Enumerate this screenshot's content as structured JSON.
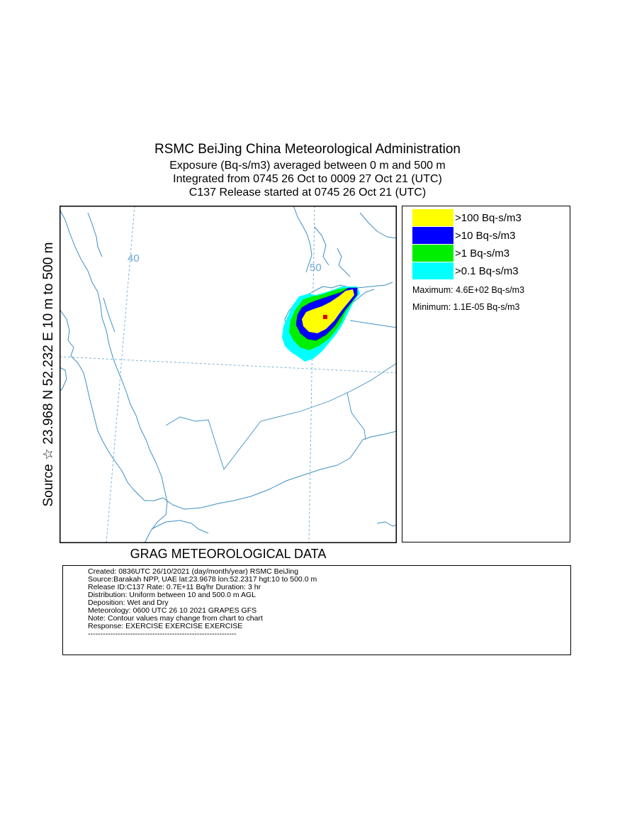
{
  "header": {
    "line1": "RSMC BeiJing China Meteorological Administration",
    "line2": "Exposure  (Bq-s/m3) averaged between     0 m and   500 m",
    "line3": "Integrated from 0745 26 Oct to 0009 27 Oct 21 (UTC)",
    "line4": "C137 Release started at 0745 26 Oct 21 (UTC)"
  },
  "side_label": "Source ☆  23.968  N  52.232  E      10 m to   500 m",
  "map": {
    "grid_labels": {
      "lon_40": "40",
      "lon_50": "50"
    },
    "colors": {
      "coast": "#3d8fc2",
      "grid": "#6aa8d6",
      "band_gt100": "#ffff00",
      "band_gt10": "#0000ff",
      "band_gt1": "#00ee00",
      "band_gt01": "#00ffff",
      "max_marker": "#e00000"
    }
  },
  "legend": {
    "items": [
      {
        "label": ">100 Bq-s/m3",
        "color": "#ffff00"
      },
      {
        "label": ">10 Bq-s/m3",
        "color": "#0000ff"
      },
      {
        "label": ">1 Bq-s/m3",
        "color": "#00ee00"
      },
      {
        "label": ">0.1 Bq-s/m3",
        "color": "#00ffff"
      }
    ],
    "maximum": "Maximum: 4.6E+02 Bq-s/m3",
    "minimum": "Minimum: 1.1E-05 Bq-s/m3"
  },
  "footer_title": "GRAG METEOROLOGICAL DATA",
  "info": {
    "lines": [
      "Created: 0836UTC 26/10/2021 (day/month/year) RSMC BeiJing",
      "Source:Barakah NPP, UAE  lat:23.9678  lon:52.2317  hgt:10 to 500.0 m",
      "Release ID:C137   Rate: 0.7E+11 Bq/hr  Duration: 3 hr",
      "Distribution: Uniform between 10 and 500.0 m AGL",
      "Deposition:   Wet and Dry",
      "Meteorology: 0600 UTC 26 10 2021 GRAPES GFS",
      "Note: Contour values may change from chart to chart",
      "Response: EXERCISE  EXERCISE  EXERCISE",
      "------------------------------------------------------------"
    ]
  }
}
